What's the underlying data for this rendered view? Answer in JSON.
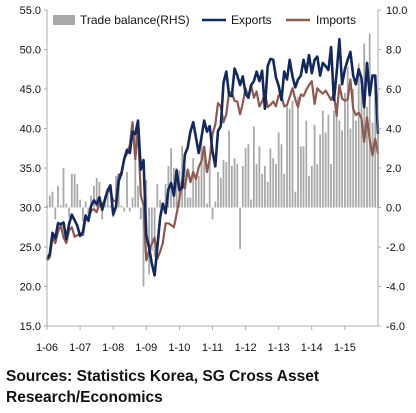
{
  "chart_data": {
    "type": "bar-line-combo",
    "legend": [
      "Trade balance(RHS)",
      "Exports",
      "Imports"
    ],
    "x_ticks": [
      "1-06",
      "1-07",
      "1-08",
      "1-09",
      "1-10",
      "1-11",
      "1-12",
      "1-13",
      "1-14",
      "1-15"
    ],
    "y_left": {
      "ticks": [
        "55.0",
        "50.0",
        "45.0",
        "40.0",
        "35.0",
        "30.0",
        "25.0",
        "20.0",
        "15.0"
      ],
      "range": [
        15,
        55
      ]
    },
    "y_right": {
      "ticks": [
        "10.0",
        "8.0",
        "6.0",
        "4.0",
        "2.0",
        "0.0",
        "-2.0",
        "-4.0",
        "-6.0"
      ],
      "range": [
        -6,
        10
      ]
    },
    "series": [
      {
        "name": "Exports",
        "axis": "left",
        "color": "#12285e",
        "values": [
          23.5,
          24.1,
          26.8,
          26.1,
          28.0,
          27.9,
          28.1,
          26.0,
          27.9,
          29.1,
          28.4,
          27.7,
          26.4,
          26.9,
          29.0,
          28.3,
          30.2,
          30.9,
          30.4,
          31.3,
          29.7,
          31.0,
          32.2,
          32.8,
          29.1,
          30.1,
          33.3,
          34.4,
          36.1,
          37.3,
          36.9,
          39.6,
          39.3,
          41.0,
          34.8,
          36.0,
          26.5,
          24.9,
          22.9,
          21.4,
          24.9,
          28.7,
          30.5,
          29.3,
          32.3,
          33.1,
          31.5,
          34.7,
          32.2,
          32.5,
          36.7,
          37.6,
          39.6,
          40.8,
          38.9,
          36.9,
          38.9,
          41.0,
          39.6,
          40.3,
          37.1,
          35.2,
          39.7,
          40.3,
          45.8,
          47.2,
          44.2,
          44.1,
          47.6,
          46.7,
          45.5,
          46.6,
          44.4,
          43.9,
          45.5,
          46.0,
          47.2,
          46.0,
          47.3,
          42.5,
          47.9,
          48.8,
          48.7,
          46.5,
          45.4,
          43.6,
          47.2,
          46.2,
          48.7,
          46.6,
          45.2,
          46.2,
          46.7,
          48.7,
          47.1,
          49.3,
          47.0,
          48.7,
          49.1,
          46.7,
          48.3,
          47.9,
          47.4,
          50.3,
          43.6,
          47.0,
          51.3,
          45.6,
          47.5,
          48.7,
          49.7,
          46.7,
          45.6,
          47.5,
          46.4,
          42.7,
          48.3,
          44.2,
          46.7,
          46.7,
          39.3
        ]
      },
      {
        "name": "Imports",
        "axis": "left",
        "color": "#8c5a50",
        "values": [
          23.3,
          23.7,
          26.2,
          25.5,
          26.9,
          27.8,
          26.2,
          25.5,
          27.1,
          27.5,
          26.3,
          26.5,
          26.6,
          26.5,
          28.7,
          28.5,
          29.6,
          29.8,
          29.4,
          30.5,
          30.4,
          30.9,
          32.2,
          32.0,
          30.9,
          30.8,
          34.2,
          34.1,
          36.2,
          36.8,
          37.9,
          40.8,
          36.1,
          40.1,
          31.5,
          30.3,
          23.3,
          24.6,
          25.4,
          26.2,
          23.5,
          24.4,
          25.5,
          28.0,
          28.0,
          27.8,
          27.5,
          29.2,
          31.1,
          33.5,
          32.4,
          34.8,
          33.2,
          34.5,
          33.6,
          35.1,
          35.9,
          37.7,
          34.5,
          36.1,
          39.3,
          40.5,
          43.2,
          42.8,
          40.8,
          41.8,
          44.6,
          44.5,
          43.5,
          43.4,
          41.8,
          43.2,
          45.1,
          43.9,
          45.5,
          43.9,
          44.7,
          42.8,
          43.4,
          44.5,
          42.7,
          43.0,
          43.4,
          42.8,
          44.2,
          44.1,
          42.8,
          43.0,
          44.0,
          45.1,
          43.7,
          42.7,
          44.3,
          44.1,
          44.9,
          45.5,
          46.0,
          43.1,
          45.1,
          44.7,
          44.4,
          44.8,
          44.2,
          43.6,
          44.4,
          41.6,
          45.5,
          43.8,
          43.5,
          43.7,
          46.2,
          42.5,
          41.7,
          42.0,
          41.3,
          38.3,
          41.4,
          38.6,
          36.6,
          38.7,
          36.8
        ]
      },
      {
        "name": "Trade balance(RHS)",
        "axis": "right",
        "type": "bar",
        "color": "#a9a9a9",
        "values": [
          0.1,
          0.6,
          0.8,
          -0.6,
          1.1,
          0.1,
          2.0,
          0.2,
          -0.5,
          1.7,
          1.7,
          1.2,
          0.4,
          -0.7,
          0.3,
          -0.4,
          0.6,
          1.1,
          1.5,
          1.3,
          -0.6,
          0.6,
          0.8,
          0.1,
          -0.5,
          1.6,
          1.7,
          0.1,
          -0.2,
          1.8,
          -0.2,
          0.5,
          3.7,
          1.1,
          -0.6,
          -4.0,
          1.4,
          -3.4,
          -2.2,
          -2.5,
          1.2,
          0.4,
          0.2,
          1.2,
          2.1,
          3.0,
          2.0,
          2.0,
          1.9,
          3.1,
          2.1,
          0.5,
          0.5,
          2.5,
          1.4,
          1.6,
          3.4,
          2.6,
          0.2,
          2.5,
          -0.6,
          0.3,
          1.8,
          1.5,
          2.4,
          2.3,
          3.9,
          2.1,
          2.5,
          2.2,
          -2.1,
          2.1,
          3.0,
          3.2,
          0.4,
          4.1,
          2.2,
          3.1,
          1.7,
          2.1,
          1.3,
          3.0,
          2.5,
          2.2,
          3.8,
          3.2,
          1.7,
          5.2,
          5.0,
          5.4,
          0.8,
          5.6,
          3.1,
          3.1,
          4.4,
          1.6,
          2.1,
          4.2,
          2.2,
          3.7,
          4.9,
          3.8,
          4.7,
          2.2,
          4.9,
          5.3,
          4.4,
          3.9,
          5.8,
          7.1,
          4.0,
          6.0,
          4.4,
          7.3,
          6.1,
          8.3,
          5.1,
          8.8,
          4.3,
          6.7,
          4.3
        ]
      }
    ]
  },
  "source_text": "Sources: Statistics Korea, SG Cross Asset Research/Economics"
}
